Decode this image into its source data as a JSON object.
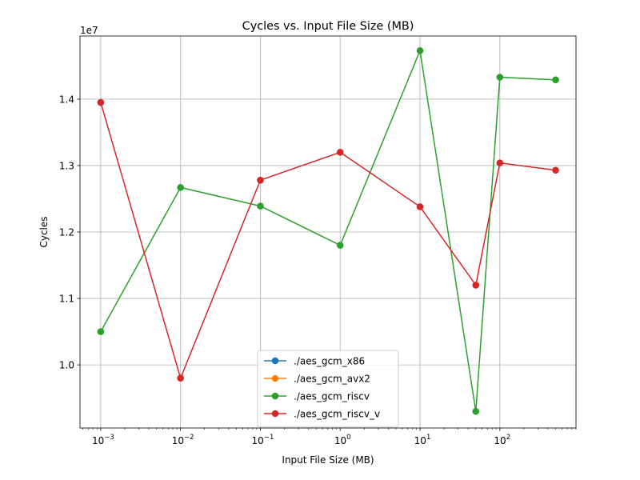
{
  "chart_data": {
    "type": "line",
    "title": "Cycles vs. Input File Size (MB)",
    "xlabel": "Input File Size (MB)",
    "ylabel": "Cycles",
    "y_offset_label": "1e7",
    "xscale": "log",
    "xlim": [
      0.00055,
      900
    ],
    "ylim": [
      9050000.0,
      14950000.0
    ],
    "x_ticks": [
      {
        "value": 0.001,
        "base": "10",
        "exp": "−3"
      },
      {
        "value": 0.01,
        "base": "10",
        "exp": "−2"
      },
      {
        "value": 0.1,
        "base": "10",
        "exp": "−1"
      },
      {
        "value": 1,
        "base": "10",
        "exp": "0"
      },
      {
        "value": 10,
        "base": "10",
        "exp": "1"
      },
      {
        "value": 100,
        "base": "10",
        "exp": "2"
      }
    ],
    "y_ticks": [
      {
        "value": 10000000,
        "label": "1.0"
      },
      {
        "value": 11000000,
        "label": "1.1"
      },
      {
        "value": 12000000,
        "label": "1.2"
      },
      {
        "value": 13000000,
        "label": "1.3"
      },
      {
        "value": 14000000,
        "label": "1.4"
      }
    ],
    "grid": true,
    "legend_position": "lower center",
    "series": [
      {
        "name": "./aes_gcm_x86",
        "color": "#1f77b4",
        "x": [],
        "y": []
      },
      {
        "name": "./aes_gcm_avx2",
        "color": "#ff7f0e",
        "x": [],
        "y": []
      },
      {
        "name": "./aes_gcm_riscv",
        "color": "#2ca02c",
        "x": [
          0.001,
          0.01,
          0.1,
          1,
          10,
          50,
          100,
          500
        ],
        "y": [
          10500000,
          12670000,
          12390000,
          11800000,
          14730000,
          9300000,
          14330000,
          14290000
        ]
      },
      {
        "name": "./aes_gcm_riscv_v",
        "color": "#d62728",
        "x": [
          0.001,
          0.01,
          0.1,
          1,
          10,
          50,
          100,
          500
        ],
        "y": [
          13950000,
          9800000,
          12780000,
          13200000,
          12380000,
          11200000,
          13040000,
          12930000
        ]
      }
    ]
  }
}
